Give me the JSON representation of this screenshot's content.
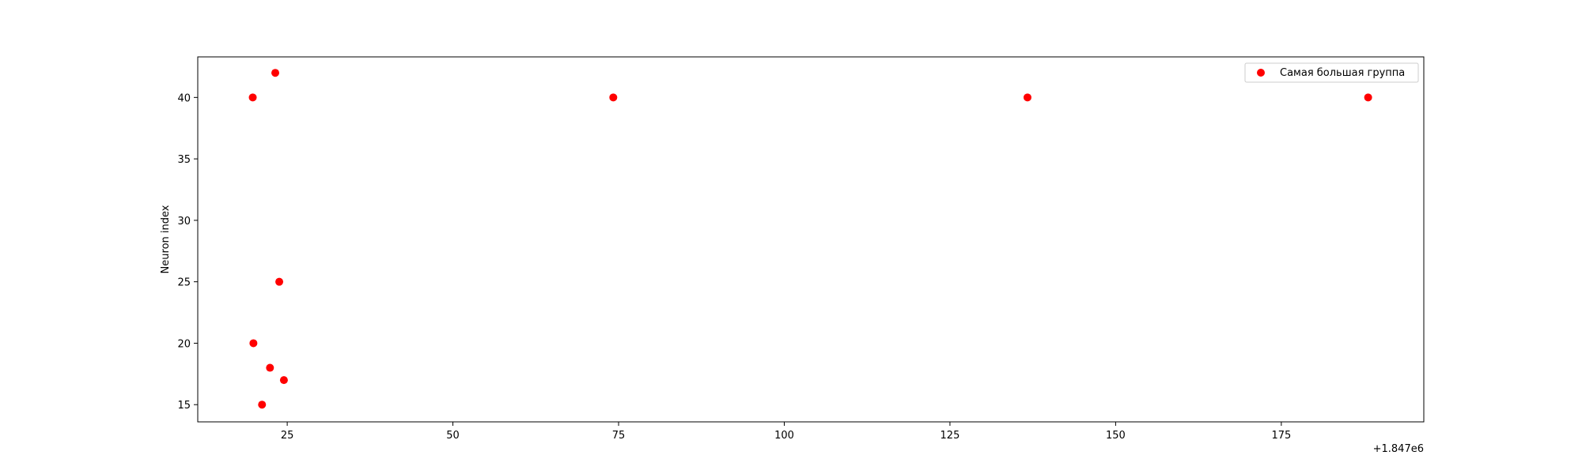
{
  "chart_data": {
    "type": "scatter",
    "title": "",
    "xlabel": "",
    "ylabel": "Neuron index",
    "x_offset_label": "+1.847e6",
    "xlim": [
      11.5,
      196.5
    ],
    "ylim": [
      13.6,
      43.3
    ],
    "x_ticks": [
      25,
      50,
      75,
      100,
      125,
      150,
      175
    ],
    "y_ticks": [
      15,
      20,
      25,
      30,
      35,
      40
    ],
    "grid": false,
    "legend_position": "top-right",
    "series": [
      {
        "name": "Самая большая группа",
        "color": "#ff0000",
        "x": [
          19.8,
          23.2,
          74.2,
          136.7,
          188.1,
          23.8,
          19.9,
          22.4,
          24.5,
          21.2
        ],
        "y": [
          40,
          42,
          40,
          40,
          40,
          25,
          20,
          18,
          17,
          15
        ]
      }
    ]
  }
}
